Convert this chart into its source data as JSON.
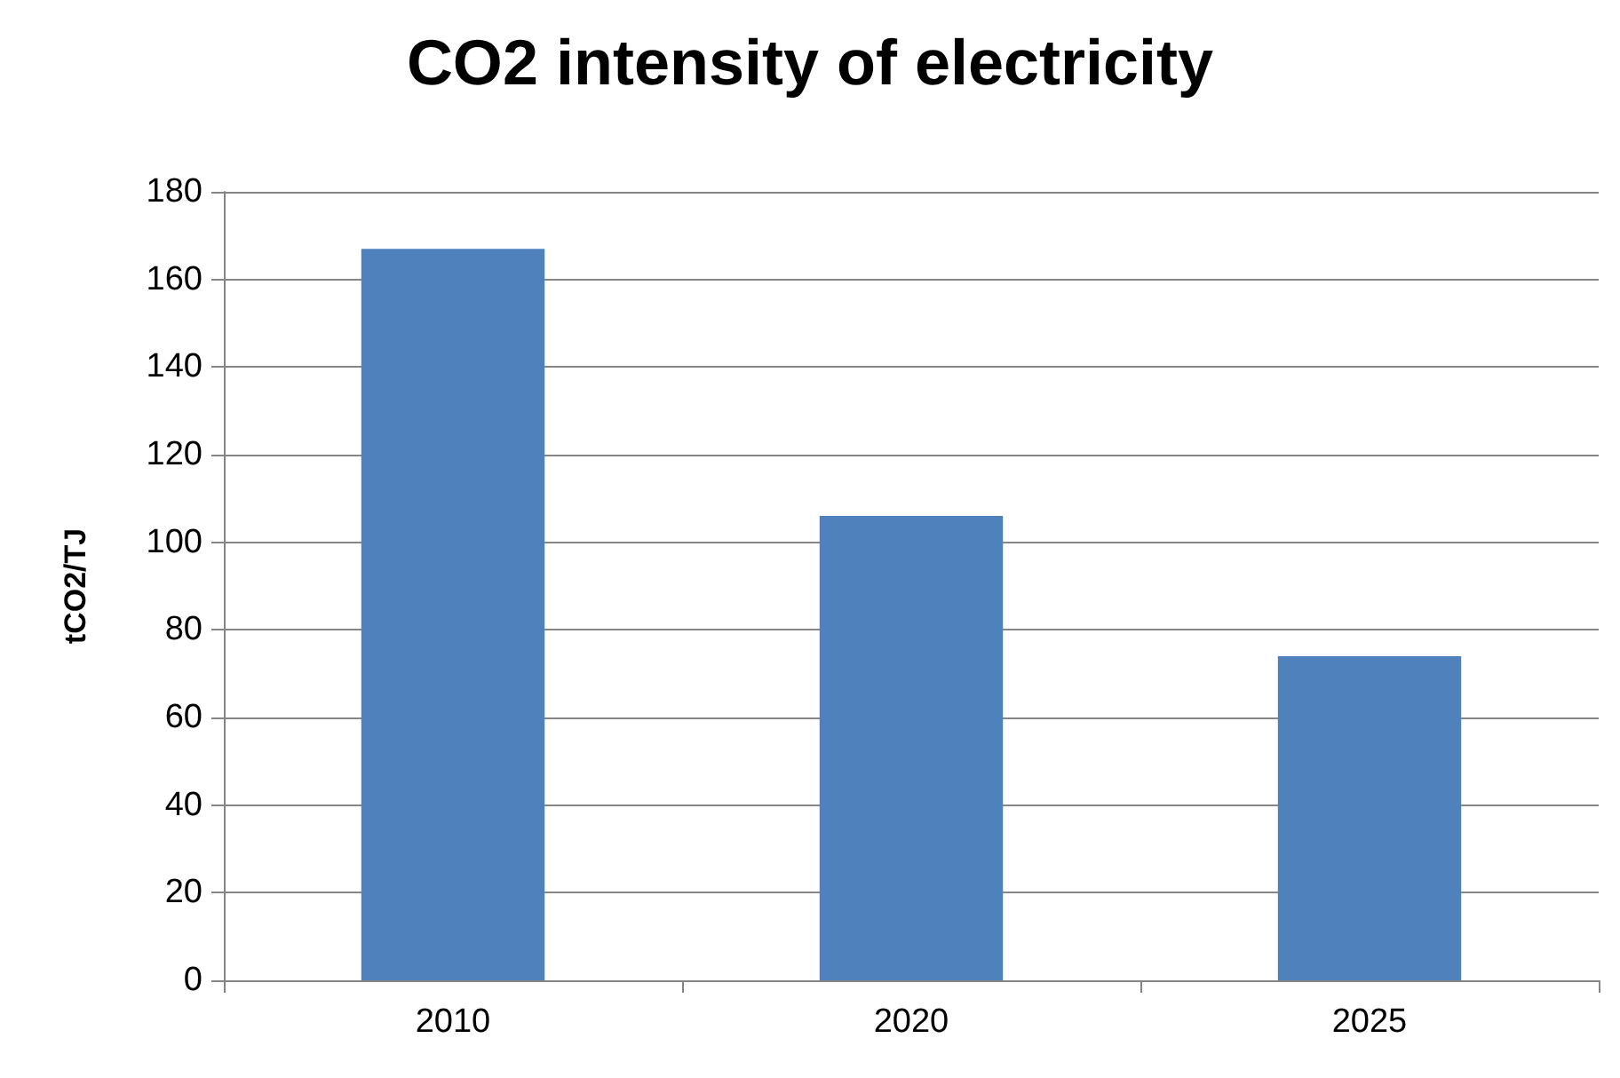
{
  "chart_data": {
    "type": "bar",
    "title": "CO2 intensity of electricity",
    "ylabel": "tCO2/TJ",
    "categories": [
      "2010",
      "2020",
      "2025"
    ],
    "values": [
      167,
      106,
      74
    ],
    "color": "#4f81bd",
    "ylim": [
      0,
      180
    ],
    "yticks": [
      0,
      20,
      40,
      60,
      80,
      100,
      120,
      140,
      160,
      180
    ],
    "grid": "y"
  }
}
